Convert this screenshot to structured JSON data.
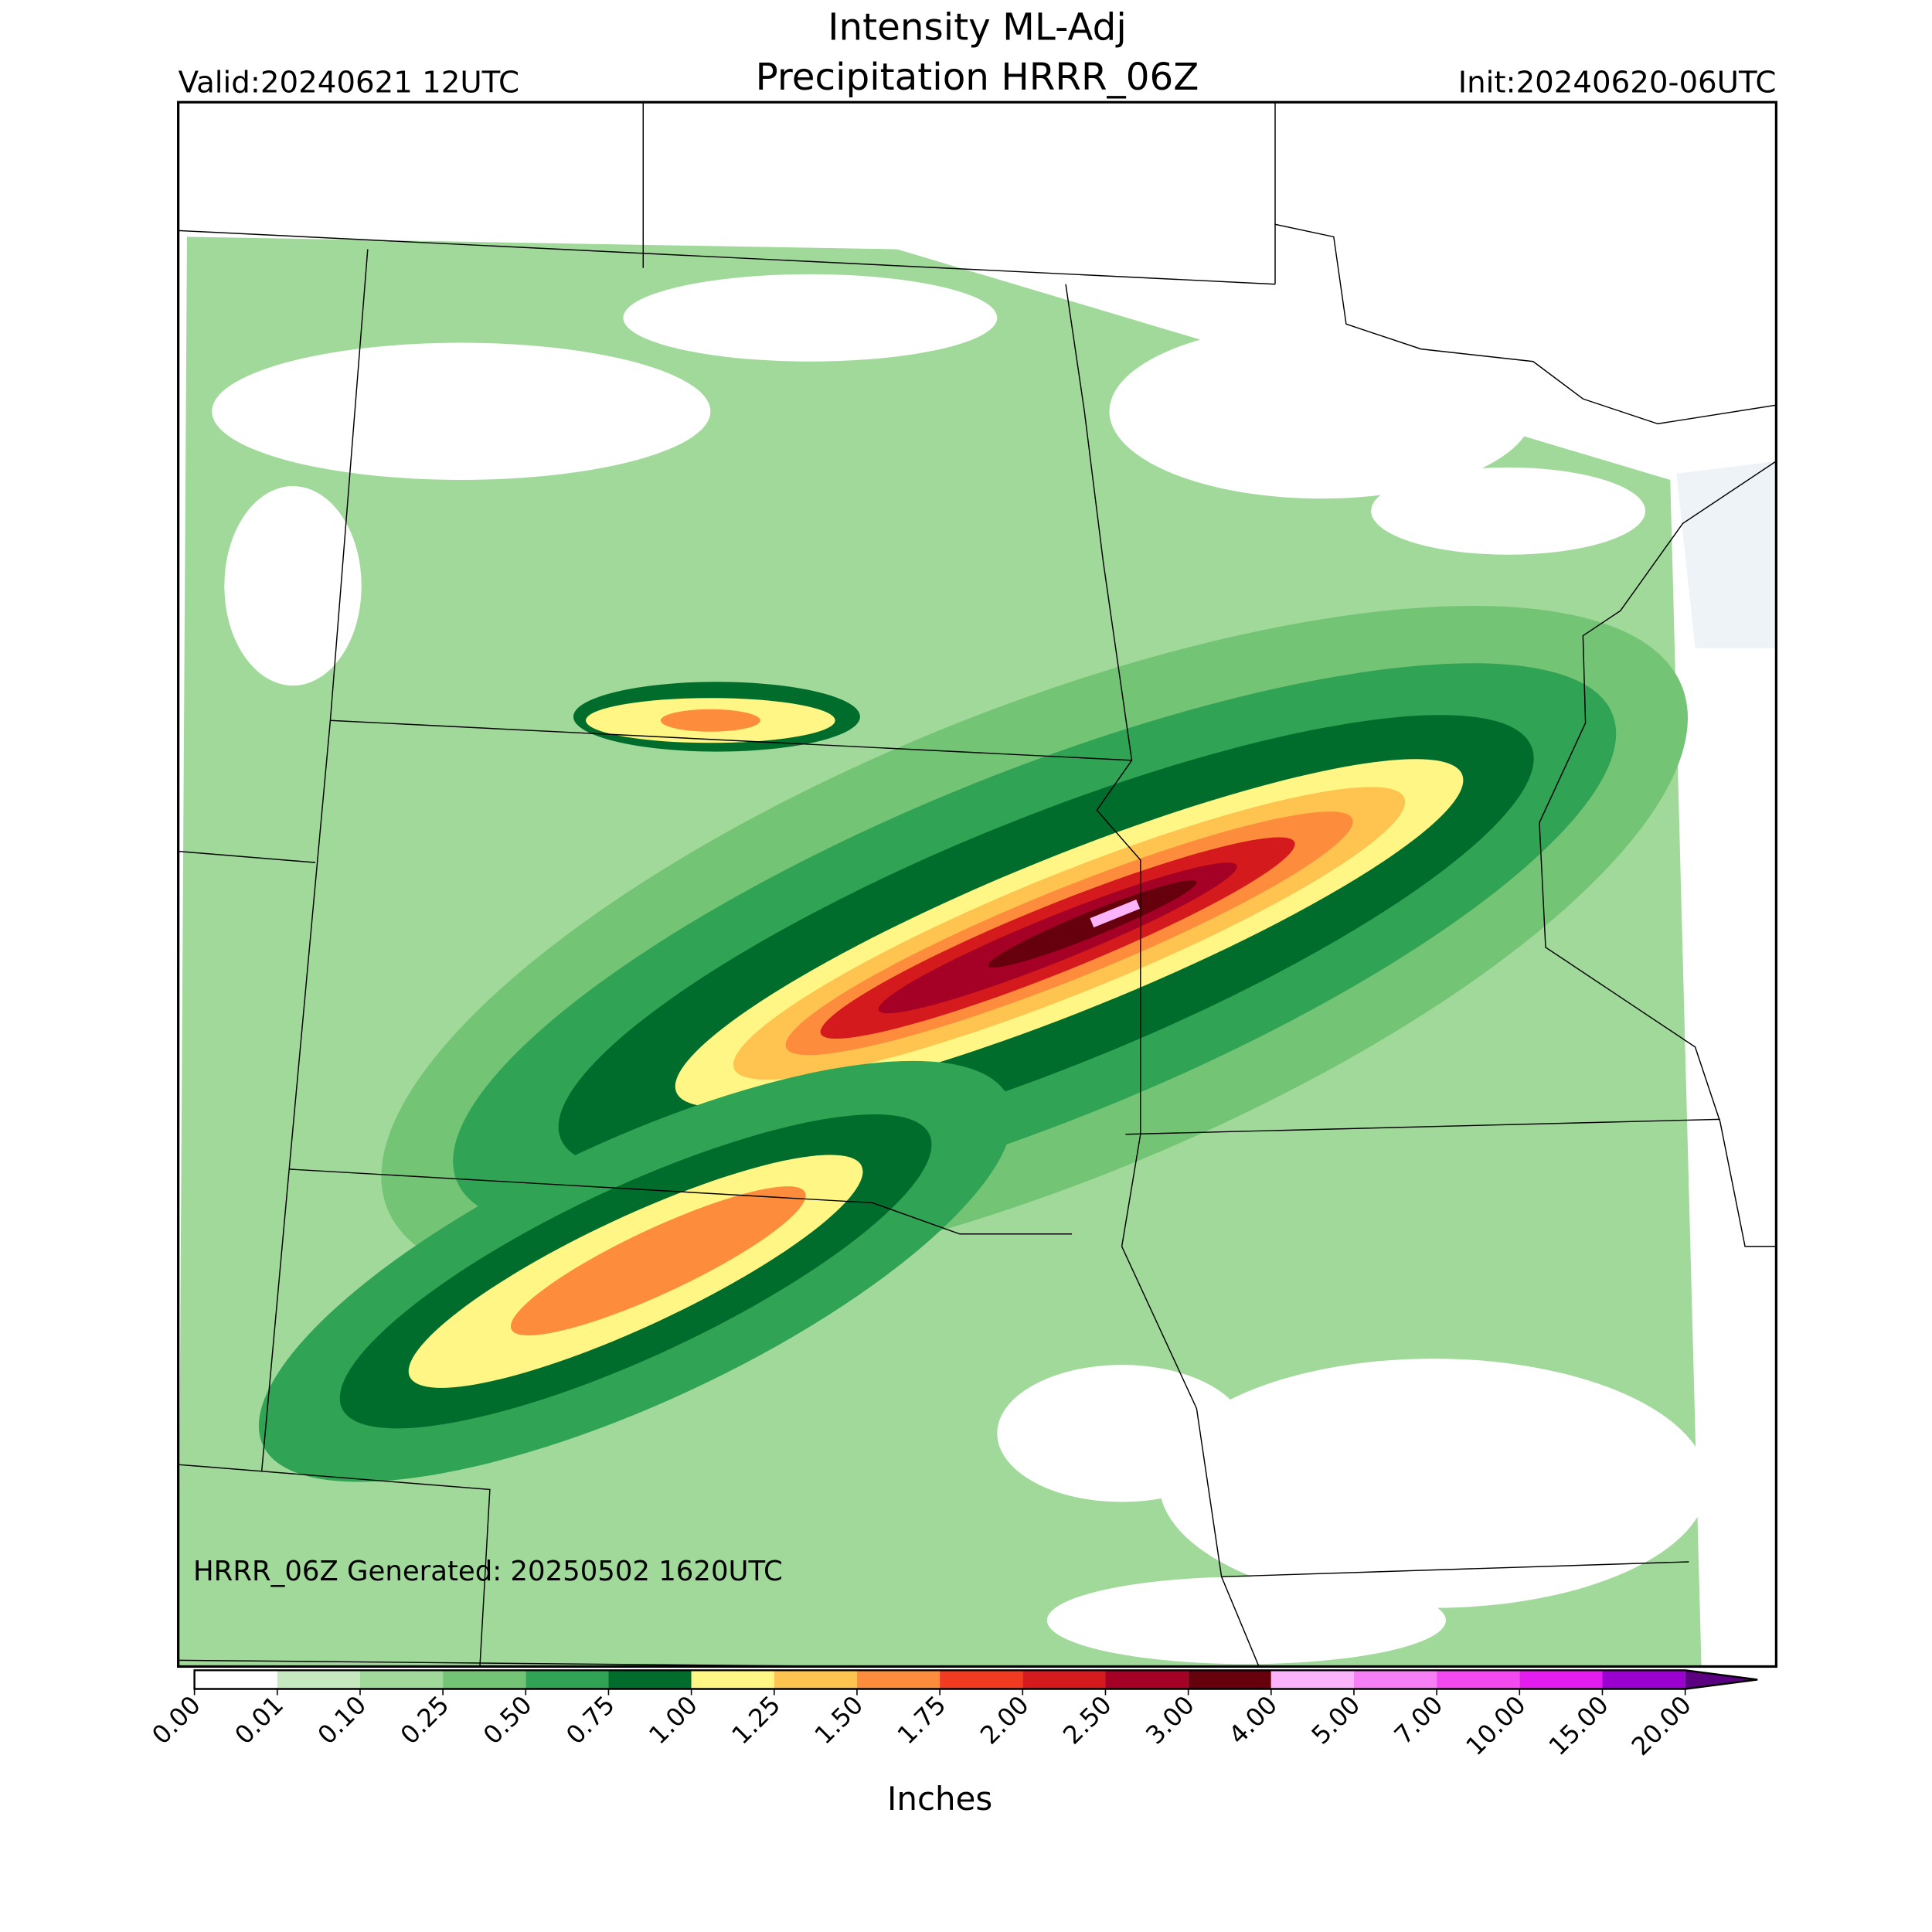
{
  "header": {
    "title": "Intensity ML-Adj",
    "subtitle": "Precipitation HRRR_06Z",
    "valid": "Valid:20240621 12UTC",
    "init": "Init:20240620-06UTC"
  },
  "footer": "HRRR_06Z Generated: 20250502 1620UTC",
  "colorbar": {
    "label": "Inches",
    "levels": [
      {
        "value": 0,
        "label": "0.00"
      },
      {
        "value": 0.01,
        "label": "0.01"
      },
      {
        "value": 0.1,
        "label": "0.10"
      },
      {
        "value": 0.25,
        "label": "0.25"
      },
      {
        "value": 0.5,
        "label": "0.50"
      },
      {
        "value": 0.75,
        "label": "0.75"
      },
      {
        "value": 1,
        "label": "1.00"
      },
      {
        "value": 1.25,
        "label": "1.25"
      },
      {
        "value": 1.5,
        "label": "1.50"
      },
      {
        "value": 1.75,
        "label": "1.75"
      },
      {
        "value": 2,
        "label": "2.00"
      },
      {
        "value": 2.5,
        "label": "2.50"
      },
      {
        "value": 3,
        "label": "3.00"
      },
      {
        "value": 4,
        "label": "4.00"
      },
      {
        "value": 5,
        "label": "5.00"
      },
      {
        "value": 7,
        "label": "7.00"
      },
      {
        "value": 10,
        "label": "10.00"
      },
      {
        "value": 15,
        "label": "15.00"
      },
      {
        "value": 20,
        "label": "20.00"
      }
    ],
    "colors": [
      "#ffffff",
      "#c7e9c0",
      "#a1d99b",
      "#74c476",
      "#31a354",
      "#006d2c",
      "#fff685",
      "#fec44f",
      "#fd8d3c",
      "#f03b20",
      "#d41a1c",
      "#a50026",
      "#67000d",
      "#fbb4f9",
      "#f77ff5",
      "#f24af0",
      "#e31cf0",
      "#9a00cf"
    ],
    "extend_color": "#5a0080"
  }
}
